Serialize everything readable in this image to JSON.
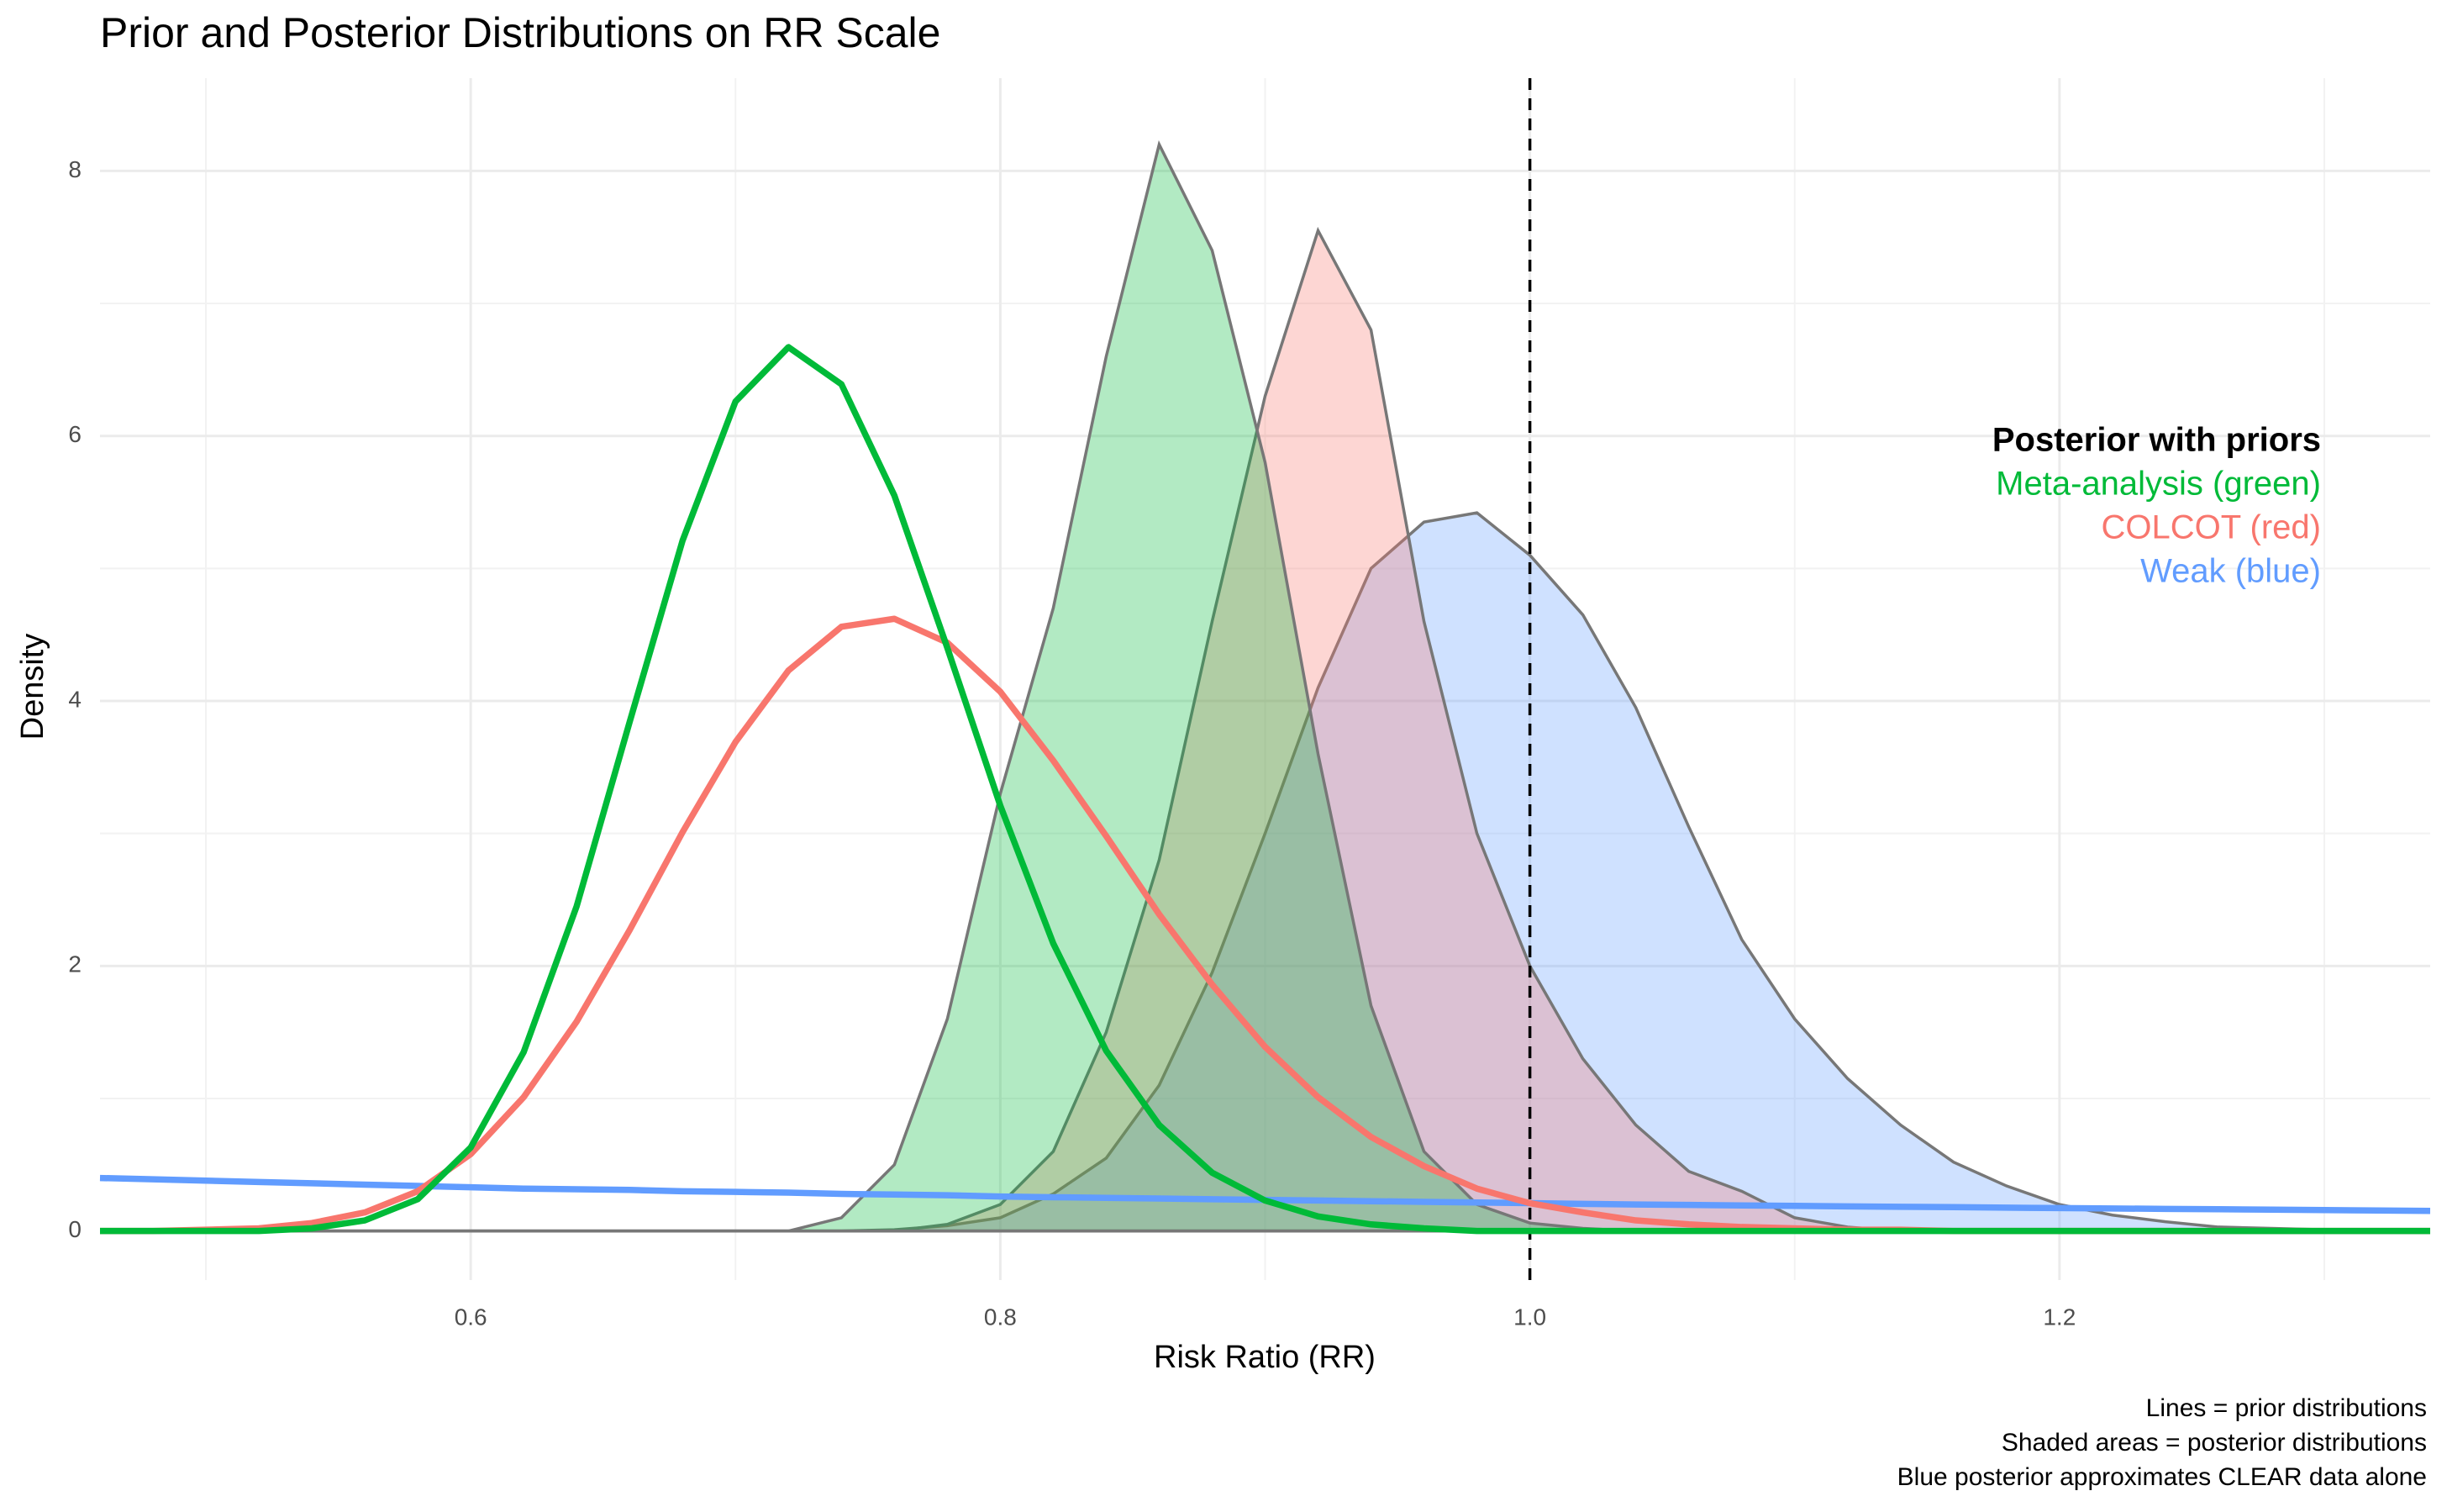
{
  "chart_data": {
    "type": "density",
    "title": "Prior and Posterior Distributions on RR Scale",
    "xlabel": "Risk Ratio (RR)",
    "ylabel": "Density",
    "x": [
      0.46,
      0.48,
      0.5,
      0.52,
      0.54,
      0.56,
      0.58,
      0.6,
      0.62,
      0.64,
      0.66,
      0.68,
      0.7,
      0.72,
      0.74,
      0.76,
      0.78,
      0.8,
      0.82,
      0.84,
      0.86,
      0.88,
      0.9,
      0.92,
      0.94,
      0.96,
      0.98,
      1.0,
      1.02,
      1.04,
      1.06,
      1.08,
      1.1,
      1.12,
      1.14,
      1.16,
      1.18,
      1.2,
      1.22,
      1.24,
      1.26,
      1.28,
      1.3,
      1.32,
      1.34
    ],
    "series": [
      {
        "kind": "posterior",
        "color": "#619CFF",
        "values": [
          0,
          0,
          0,
          0,
          0,
          0,
          0,
          0,
          0,
          0,
          0,
          0,
          0,
          0,
          0,
          0.01,
          0.04,
          0.1,
          0.28,
          0.55,
          1.1,
          1.95,
          3.0,
          4.1,
          5.0,
          5.35,
          5.42,
          5.1,
          4.65,
          3.95,
          3.05,
          2.2,
          1.6,
          1.15,
          0.8,
          0.52,
          0.34,
          0.2,
          0.12,
          0.07,
          0.03,
          0.02,
          0.01,
          0,
          0
        ]
      },
      {
        "kind": "posterior",
        "color": "#F8766D",
        "values": [
          0,
          0,
          0,
          0,
          0,
          0,
          0,
          0,
          0,
          0,
          0,
          0,
          0,
          0,
          0,
          0,
          0.05,
          0.2,
          0.6,
          1.5,
          2.8,
          4.6,
          6.3,
          7.55,
          6.8,
          4.6,
          3.0,
          2.0,
          1.3,
          0.8,
          0.45,
          0.3,
          0.1,
          0.03,
          0,
          0,
          0,
          0,
          0,
          0,
          0,
          0,
          0,
          0,
          0
        ]
      },
      {
        "kind": "posterior",
        "color": "#00BA38",
        "values": [
          0,
          0,
          0,
          0,
          0,
          0,
          0,
          0,
          0,
          0,
          0,
          0,
          0,
          0,
          0.1,
          0.5,
          1.6,
          3.3,
          4.7,
          6.6,
          8.2,
          7.4,
          5.8,
          3.6,
          1.7,
          0.6,
          0.2,
          0.06,
          0.02,
          0,
          0,
          0,
          0,
          0,
          0,
          0,
          0,
          0,
          0,
          0,
          0,
          0,
          0,
          0,
          0
        ]
      },
      {
        "kind": "prior",
        "color": "#619CFF",
        "values": [
          0.4,
          0.39,
          0.38,
          0.37,
          0.36,
          0.35,
          0.34,
          0.33,
          0.32,
          0.315,
          0.31,
          0.3,
          0.295,
          0.29,
          0.28,
          0.275,
          0.27,
          0.26,
          0.255,
          0.25,
          0.245,
          0.24,
          0.235,
          0.23,
          0.225,
          0.22,
          0.215,
          0.21,
          0.205,
          0.2,
          0.197,
          0.193,
          0.19,
          0.186,
          0.183,
          0.18,
          0.176,
          0.173,
          0.17,
          0.167,
          0.164,
          0.161,
          0.158,
          0.155,
          0.152
        ]
      },
      {
        "kind": "prior",
        "color": "#F8766D",
        "values": [
          0,
          0,
          0.01,
          0.02,
          0.06,
          0.14,
          0.3,
          0.58,
          1.01,
          1.58,
          2.27,
          3.01,
          3.69,
          4.23,
          4.56,
          4.62,
          4.44,
          4.07,
          3.55,
          2.98,
          2.39,
          1.86,
          1.39,
          1.01,
          0.71,
          0.49,
          0.32,
          0.21,
          0.14,
          0.08,
          0.05,
          0.03,
          0.02,
          0.01,
          0.01,
          0,
          0,
          0,
          0,
          0,
          0,
          0,
          0,
          0,
          0
        ]
      },
      {
        "kind": "prior",
        "color": "#00BA38",
        "values": [
          0,
          0,
          0,
          0,
          0.02,
          0.08,
          0.24,
          0.63,
          1.35,
          2.45,
          3.84,
          5.21,
          6.26,
          6.67,
          6.39,
          5.55,
          4.4,
          3.21,
          2.17,
          1.36,
          0.8,
          0.44,
          0.23,
          0.11,
          0.05,
          0.02,
          0,
          0,
          0,
          0,
          0,
          0,
          0,
          0,
          0,
          0,
          0,
          0,
          0,
          0,
          0,
          0,
          0,
          0,
          0
        ]
      }
    ],
    "xlim": [
      0.46,
      1.34
    ],
    "ylim": [
      -0.37,
      8.7
    ],
    "xticks": [
      0.6,
      0.8,
      {
        "value": 1.0,
        "label": "1.0"
      },
      1.2
    ],
    "yticks": [
      0,
      2,
      4,
      6,
      8
    ],
    "xminorticks": [
      0.5,
      0.7,
      0.9,
      1.1,
      1.3
    ],
    "yminorticks": [
      1,
      3,
      5,
      7
    ],
    "grid": true,
    "vline": 1.0,
    "annotation": {
      "title": "Posterior with priors",
      "lines": [
        {
          "text": "Meta-analysis (green)",
          "color": "#00BA38"
        },
        {
          "text": "COLCOT (red)",
          "color": "#F8766D"
        },
        {
          "text": "Weak (blue)",
          "color": "#619CFF"
        }
      ]
    },
    "caption": [
      "Lines = prior distributions",
      "Shaded areas = posterior distributions",
      "Blue posterior approximates CLEAR data alone"
    ]
  }
}
